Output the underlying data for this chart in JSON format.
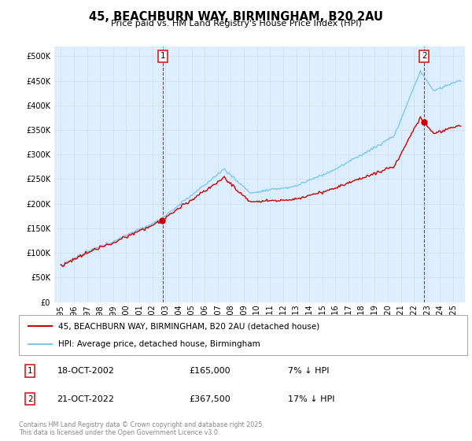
{
  "title": "45, BEACHBURN WAY, BIRMINGHAM, B20 2AU",
  "subtitle": "Price paid vs. HM Land Registry's House Price Index (HPI)",
  "legend_entries": [
    "45, BEACHBURN WAY, BIRMINGHAM, B20 2AU (detached house)",
    "HPI: Average price, detached house, Birmingham"
  ],
  "transaction1_date": "18-OCT-2002",
  "transaction1_price": "£165,000",
  "transaction1_hpi": "7% ↓ HPI",
  "transaction1_year": 2002.79,
  "transaction1_value": 165000,
  "transaction2_date": "21-OCT-2022",
  "transaction2_price": "£367,500",
  "transaction2_hpi": "17% ↓ HPI",
  "transaction2_year": 2022.79,
  "transaction2_value": 367500,
  "footer": "Contains HM Land Registry data © Crown copyright and database right 2025.\nThis data is licensed under the Open Government Licence v3.0.",
  "line_color_red": "#cc0000",
  "line_color_blue": "#7ec8f0",
  "grid_color": "#ccddee",
  "background_color": "#ffffff",
  "plot_bg_color": "#ddeeff",
  "annotation_box_color": "#cc2222",
  "vline_color": "#cc2222",
  "ylim_max": 520000,
  "xlim_min": 1994.5,
  "xlim_max": 2025.9
}
